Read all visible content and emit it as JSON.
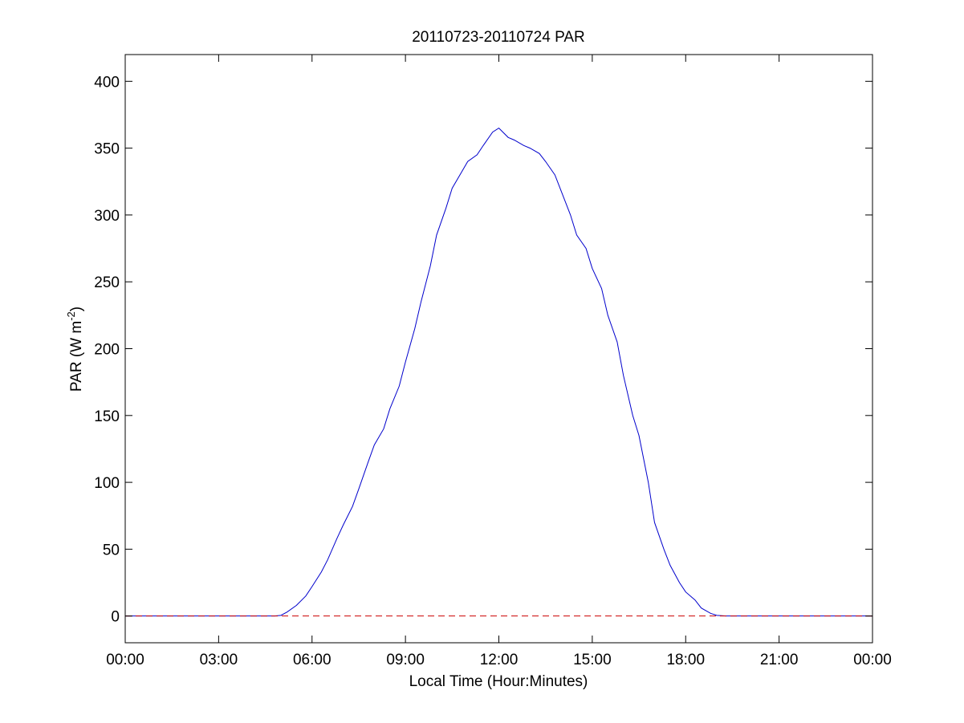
{
  "chart_data": {
    "type": "line",
    "title": "20110723-20110724 PAR",
    "xlabel": "Local Time (Hour:Minutes)",
    "ylabel_main": "PAR (W m",
    "ylabel_exp": "-2",
    "ylabel_close": ")",
    "xlim": [
      0,
      24
    ],
    "ylim": [
      -20,
      420
    ],
    "x_ticks": [
      0,
      3,
      6,
      9,
      12,
      15,
      18,
      21,
      24
    ],
    "x_tick_labels": [
      "00:00",
      "03:00",
      "06:00",
      "09:00",
      "12:00",
      "15:00",
      "18:00",
      "21:00",
      "00:00"
    ],
    "y_ticks": [
      0,
      50,
      100,
      150,
      200,
      250,
      300,
      350,
      400
    ],
    "y_tick_labels": [
      "0",
      "50",
      "100",
      "150",
      "200",
      "250",
      "300",
      "350",
      "400"
    ],
    "grid": false,
    "series": [
      {
        "style": "solid",
        "color": "#0000cc",
        "x": [
          0,
          4.8,
          5.0,
          5.2,
          5.5,
          5.8,
          6.0,
          6.3,
          6.5,
          6.8,
          7.0,
          7.3,
          7.5,
          7.8,
          8.0,
          8.3,
          8.5,
          8.8,
          9.0,
          9.3,
          9.5,
          9.8,
          10.0,
          10.3,
          10.5,
          10.8,
          11.0,
          11.3,
          11.5,
          11.8,
          12.0,
          12.3,
          12.5,
          12.8,
          13.0,
          13.3,
          13.5,
          13.8,
          14.0,
          14.3,
          14.5,
          14.8,
          15.0,
          15.3,
          15.5,
          15.8,
          16.0,
          16.3,
          16.5,
          16.8,
          17.0,
          17.3,
          17.5,
          17.8,
          18.0,
          18.3,
          18.5,
          18.8,
          19.0,
          19.3,
          24.0
        ],
        "y": [
          0,
          0,
          0.5,
          3,
          8,
          15,
          22,
          33,
          42,
          58,
          68,
          82,
          95,
          115,
          128,
          140,
          155,
          172,
          190,
          215,
          235,
          262,
          285,
          305,
          320,
          332,
          340,
          345,
          352,
          362,
          365,
          358,
          356,
          352,
          350,
          346,
          340,
          330,
          318,
          300,
          285,
          275,
          260,
          245,
          225,
          205,
          180,
          150,
          135,
          100,
          70,
          50,
          38,
          25,
          18,
          12,
          6,
          2,
          0.5,
          0,
          0
        ]
      },
      {
        "style": "dashed",
        "color": "#cc0000",
        "x": [
          0,
          24
        ],
        "y": [
          0,
          0
        ]
      }
    ]
  }
}
